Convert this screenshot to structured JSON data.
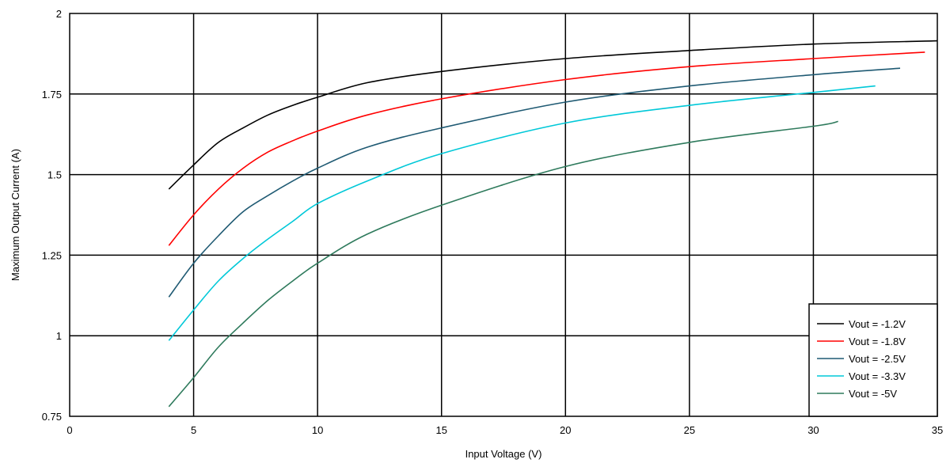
{
  "chart_data": {
    "type": "line",
    "title": "",
    "xlabel": "Input Voltage (V)",
    "ylabel": "Maximum Output Current (A)",
    "xlim": [
      0,
      35
    ],
    "ylim": [
      0.75,
      2
    ],
    "xticks": [
      0,
      5,
      10,
      15,
      20,
      25,
      30,
      35
    ],
    "xtick_labels": [
      "0",
      "5",
      "10",
      "15",
      "20",
      "25",
      "30",
      "35"
    ],
    "yticks": [
      0.75,
      1,
      1.25,
      1.5,
      1.75,
      2
    ],
    "ytick_labels": [
      "0.75",
      "1",
      "1.25",
      "1.5",
      "1.75",
      "2"
    ],
    "grid": true,
    "legend_position": "bottom-right",
    "series": [
      {
        "name": "Vout = -1.2V",
        "color": "#000000",
        "x": [
          4,
          5,
          6,
          7,
          8,
          9,
          10,
          12,
          15,
          20,
          25,
          30,
          35
        ],
        "y": [
          1.455,
          1.53,
          1.6,
          1.645,
          1.685,
          1.715,
          1.74,
          1.785,
          1.82,
          1.86,
          1.885,
          1.905,
          1.915
        ]
      },
      {
        "name": "Vout = -1.8V",
        "color": "#ff0000",
        "x": [
          4,
          5,
          6,
          7,
          8,
          9,
          10,
          12,
          15,
          20,
          25,
          30,
          34.5
        ],
        "y": [
          1.28,
          1.375,
          1.455,
          1.52,
          1.57,
          1.605,
          1.635,
          1.685,
          1.735,
          1.795,
          1.835,
          1.86,
          1.88
        ]
      },
      {
        "name": "Vout = -2.5V",
        "color": "#1f5a73",
        "x": [
          4,
          5,
          6,
          7,
          8,
          9,
          10,
          12,
          15,
          20,
          25,
          30,
          33.5
        ],
        "y": [
          1.12,
          1.225,
          1.31,
          1.385,
          1.435,
          1.48,
          1.52,
          1.585,
          1.645,
          1.725,
          1.775,
          1.81,
          1.83
        ]
      },
      {
        "name": "Vout = -3.3V",
        "color": "#00c8d8",
        "x": [
          4,
          5,
          6,
          7,
          8,
          9,
          10,
          12,
          15,
          20,
          25,
          30,
          32.5
        ],
        "y": [
          0.985,
          1.08,
          1.17,
          1.24,
          1.3,
          1.355,
          1.41,
          1.48,
          1.565,
          1.66,
          1.715,
          1.755,
          1.775
        ]
      },
      {
        "name": "Vout = -5V",
        "color": "#2e7a5c",
        "x": [
          4,
          5,
          6,
          7,
          8,
          9,
          10,
          12,
          15,
          20,
          25,
          30,
          31
        ],
        "y": [
          0.78,
          0.87,
          0.965,
          1.04,
          1.11,
          1.17,
          1.225,
          1.315,
          1.405,
          1.525,
          1.6,
          1.65,
          1.665
        ]
      }
    ]
  }
}
